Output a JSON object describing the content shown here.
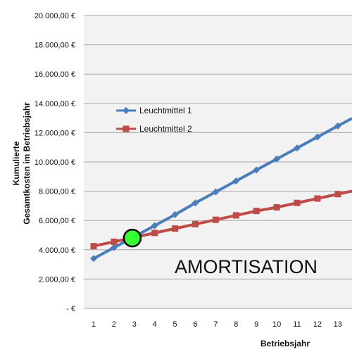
{
  "chart_data": {
    "type": "line",
    "title": "",
    "xlabel": "Betriebsjahr",
    "ylabel_line1": "Kumulierte",
    "ylabel_line2": "Gesamtkosten im Betriebsjahr",
    "x": [
      1,
      2,
      3,
      4,
      5,
      6,
      7,
      8,
      9,
      10,
      11,
      12,
      13
    ],
    "x_tick_labels": [
      "1",
      "2",
      "3",
      "4",
      "5",
      "6",
      "7",
      "8",
      "9",
      "10",
      "11",
      "12",
      "13"
    ],
    "ylim": [
      0,
      20000
    ],
    "y_ticks": [
      0,
      2000,
      4000,
      6000,
      8000,
      10000,
      12000,
      14000,
      16000,
      18000,
      20000
    ],
    "y_tick_labels": [
      "-   €",
      "2.000,00 €",
      "4.000,00 €",
      "6.000,00 €",
      "8.000,00 €",
      "10.000,00 €",
      "12.000,00 €",
      "14.000,00 €",
      "16.000,00 €",
      "18.000,00 €",
      "20.000,00 €"
    ],
    "grid": "horizontal",
    "legend_position": "upper-left inside plot",
    "series": [
      {
        "name": "Leuchtmittel 1",
        "color": "#4a7ebb",
        "marker": "diamond",
        "values": [
          3400,
          4150,
          4900,
          5650,
          6400,
          7200,
          7950,
          8700,
          9450,
          10200,
          10950,
          11700,
          12450
        ]
      },
      {
        "name": "Leuchtmittel 2",
        "color": "#be4b48",
        "marker": "square",
        "values": [
          4250,
          4550,
          4850,
          5150,
          5450,
          5750,
          6050,
          6350,
          6650,
          6900,
          7200,
          7500,
          7800
        ]
      }
    ],
    "intersection": {
      "x": 2.9,
      "y": 4800,
      "color": "#33ff33"
    },
    "annotation": "AMORTISATION"
  }
}
